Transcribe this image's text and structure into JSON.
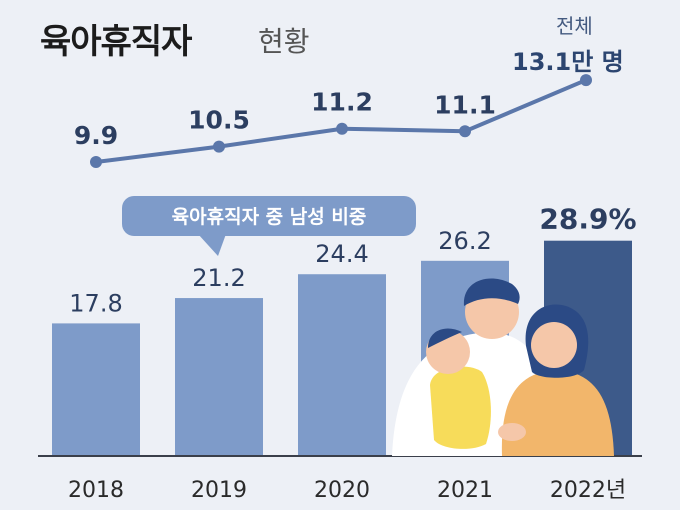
{
  "title": {
    "main": "육아휴직자",
    "sub": "현황"
  },
  "total": {
    "label": "전체",
    "value": "13.1만 명"
  },
  "bubble": "육아휴직자 중 남성 비중",
  "colors": {
    "background": "#edf0f6",
    "bar": "#7e9bc9",
    "bar_highlight": "#3d5a8a",
    "line": "#5b77aa",
    "text": "#2c3e60"
  },
  "chart_data": [
    {
      "type": "line",
      "x": [
        "2018",
        "2019",
        "2020",
        "2021",
        "2022"
      ],
      "values": [
        9.9,
        10.5,
        11.2,
        11.1,
        13.1
      ],
      "data_labels": [
        "9.9",
        "10.5",
        "11.2",
        "11.1",
        ""
      ]
    },
    {
      "type": "bar",
      "categories": [
        "2018",
        "2019",
        "2020",
        "2021",
        "2022년"
      ],
      "values": [
        17.8,
        21.2,
        24.4,
        26.2,
        28.9
      ],
      "data_labels": [
        "17.8",
        "21.2",
        "24.4",
        "26.2",
        "28.9%"
      ],
      "highlight_index": 4
    }
  ]
}
